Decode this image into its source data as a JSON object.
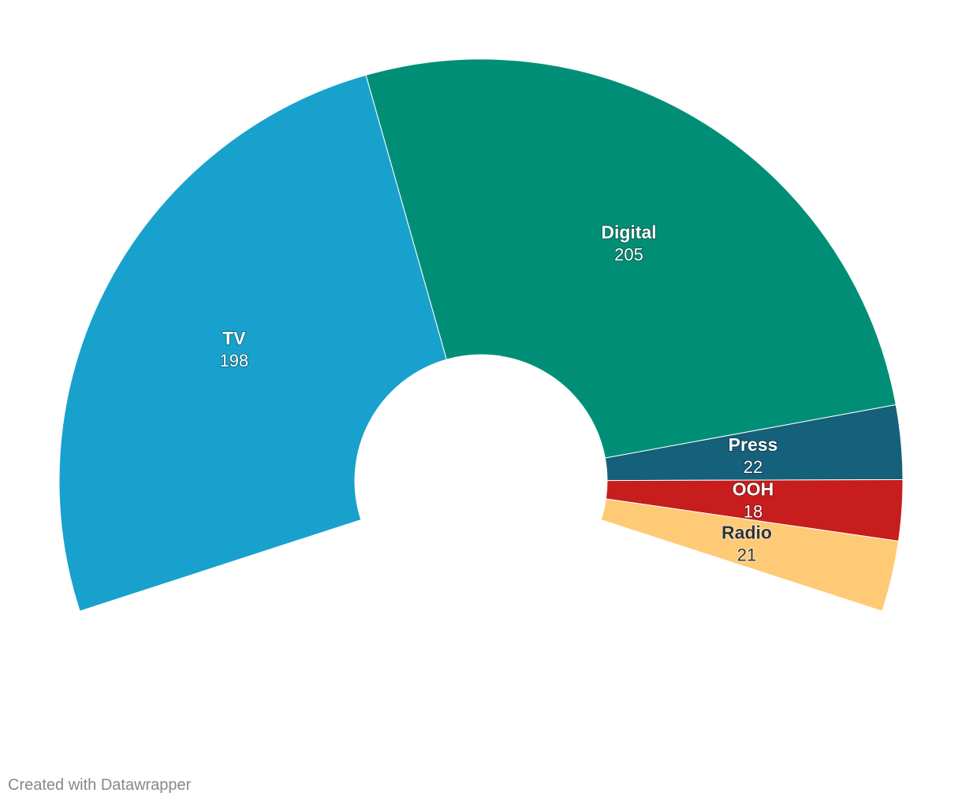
{
  "chart_data": {
    "type": "pie",
    "variant": "partial-donut",
    "unit": "",
    "colors": {
      "slice_stroke": "#ffffff",
      "label_light": "#ffffff",
      "label_dark": "#333333"
    },
    "slices": [
      {
        "label": "TV",
        "value": 198,
        "display_value": "198",
        "color": "#18a1cd",
        "label_color": "#ffffff"
      },
      {
        "label": "Digital",
        "value": 205,
        "display_value": "205",
        "color": "#008f76",
        "label_color": "#ffffff"
      },
      {
        "label": "Press",
        "value": 22,
        "display_value": "22",
        "color": "#15607a",
        "label_color": "#ffffff"
      },
      {
        "label": "OOH",
        "value": 18,
        "display_value": "18",
        "color": "#c71e1d",
        "label_color": "#ffffff"
      },
      {
        "label": "Radio",
        "value": 21,
        "display_value": "21",
        "color": "#ffca76",
        "label_color": "#333333"
      }
    ]
  },
  "footer": {
    "credit": "Created with Datawrapper"
  }
}
